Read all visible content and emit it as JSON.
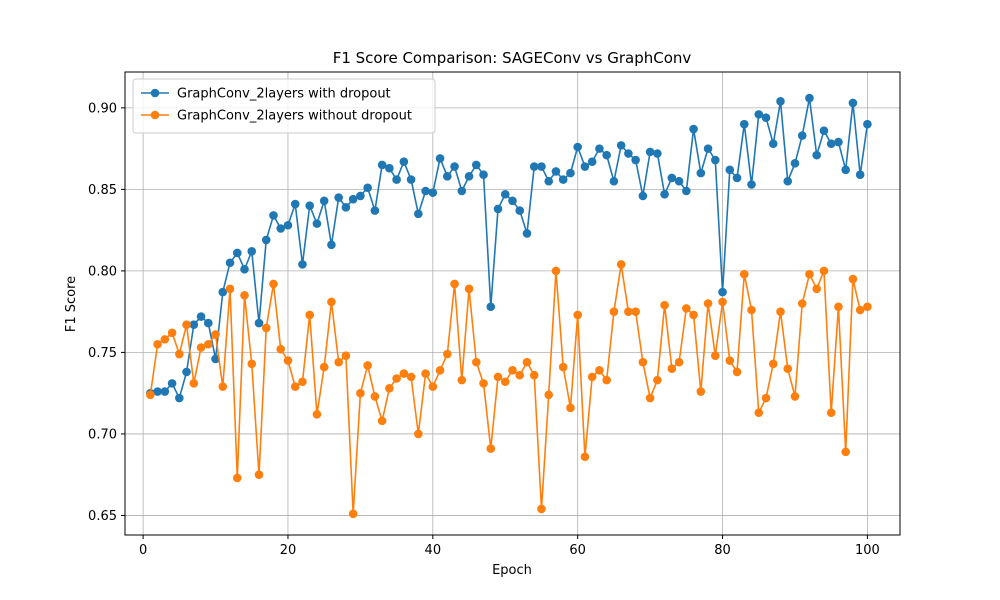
{
  "chart_data": {
    "type": "line",
    "title": "F1 Score Comparison: SAGEConv vs GraphConv",
    "xlabel": "Epoch",
    "ylabel": "F1 Score",
    "xlim": [
      -2.5,
      104.5
    ],
    "ylim": [
      0.638,
      0.922
    ],
    "xticks": [
      0,
      20,
      40,
      60,
      80,
      100
    ],
    "xtick_labels": [
      "0",
      "20",
      "40",
      "60",
      "80",
      "100"
    ],
    "yticks": [
      0.65,
      0.7,
      0.75,
      0.8,
      0.85,
      0.9
    ],
    "ytick_labels": [
      "0.65",
      "0.70",
      "0.75",
      "0.80",
      "0.85",
      "0.90"
    ],
    "grid": true,
    "legend_position": "top-left",
    "x": [
      1,
      2,
      3,
      4,
      5,
      6,
      7,
      8,
      9,
      10,
      11,
      12,
      13,
      14,
      15,
      16,
      17,
      18,
      19,
      20,
      21,
      22,
      23,
      24,
      25,
      26,
      27,
      28,
      29,
      30,
      31,
      32,
      33,
      34,
      35,
      36,
      37,
      38,
      39,
      40,
      41,
      42,
      43,
      44,
      45,
      46,
      47,
      48,
      49,
      50,
      51,
      52,
      53,
      54,
      55,
      56,
      57,
      58,
      59,
      60,
      61,
      62,
      63,
      64,
      65,
      66,
      67,
      68,
      69,
      70,
      71,
      72,
      73,
      74,
      75,
      76,
      77,
      78,
      79,
      80,
      81,
      82,
      83,
      84,
      85,
      86,
      87,
      88,
      89,
      90,
      91,
      92,
      93,
      94,
      95,
      96,
      97,
      98,
      99,
      100
    ],
    "series": [
      {
        "name": "GraphConv_2layers with dropout",
        "color": "#1f77b4",
        "values": [
          0.725,
          0.726,
          0.726,
          0.731,
          0.722,
          0.738,
          0.767,
          0.772,
          0.768,
          0.746,
          0.787,
          0.805,
          0.811,
          0.801,
          0.812,
          0.768,
          0.819,
          0.834,
          0.826,
          0.828,
          0.841,
          0.804,
          0.84,
          0.829,
          0.843,
          0.816,
          0.845,
          0.839,
          0.844,
          0.846,
          0.851,
          0.837,
          0.865,
          0.863,
          0.856,
          0.867,
          0.856,
          0.835,
          0.849,
          0.848,
          0.869,
          0.858,
          0.864,
          0.849,
          0.858,
          0.865,
          0.859,
          0.778,
          0.838,
          0.847,
          0.843,
          0.837,
          0.823,
          0.864,
          0.864,
          0.855,
          0.861,
          0.856,
          0.86,
          0.876,
          0.864,
          0.867,
          0.875,
          0.871,
          0.855,
          0.877,
          0.872,
          0.868,
          0.846,
          0.873,
          0.872,
          0.847,
          0.857,
          0.855,
          0.849,
          0.887,
          0.86,
          0.875,
          0.868,
          0.787,
          0.862,
          0.857,
          0.89,
          0.853,
          0.896,
          0.894,
          0.878,
          0.904,
          0.855,
          0.866,
          0.883,
          0.906,
          0.871,
          0.886,
          0.878,
          0.879,
          0.862,
          0.903,
          0.859,
          0.89
        ]
      },
      {
        "name": "GraphConv_2layers without dropout",
        "color": "#ff7f0e",
        "values": [
          0.724,
          0.755,
          0.758,
          0.762,
          0.749,
          0.767,
          0.731,
          0.753,
          0.755,
          0.761,
          0.729,
          0.789,
          0.673,
          0.785,
          0.743,
          0.675,
          0.765,
          0.792,
          0.752,
          0.745,
          0.729,
          0.732,
          0.773,
          0.712,
          0.741,
          0.781,
          0.744,
          0.748,
          0.651,
          0.725,
          0.742,
          0.723,
          0.708,
          0.728,
          0.734,
          0.737,
          0.735,
          0.7,
          0.737,
          0.729,
          0.739,
          0.749,
          0.792,
          0.733,
          0.789,
          0.744,
          0.731,
          0.691,
          0.735,
          0.732,
          0.739,
          0.736,
          0.744,
          0.736,
          0.654,
          0.724,
          0.8,
          0.741,
          0.716,
          0.773,
          0.686,
          0.735,
          0.739,
          0.733,
          0.775,
          0.804,
          0.775,
          0.775,
          0.744,
          0.722,
          0.733,
          0.779,
          0.74,
          0.744,
          0.777,
          0.773,
          0.726,
          0.78,
          0.748,
          0.781,
          0.745,
          0.738,
          0.798,
          0.776,
          0.713,
          0.722,
          0.743,
          0.775,
          0.74,
          0.723,
          0.78,
          0.798,
          0.789,
          0.8,
          0.713,
          0.778,
          0.689,
          0.795,
          0.776,
          0.778
        ]
      }
    ]
  }
}
